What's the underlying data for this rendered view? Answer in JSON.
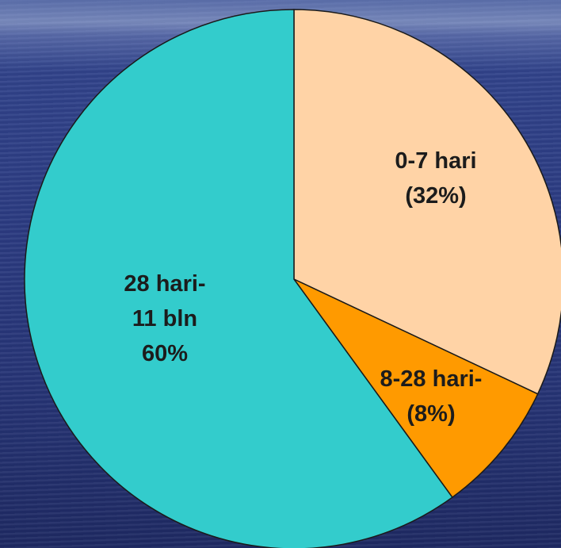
{
  "chart_data": {
    "type": "pie",
    "start_angle_deg": 0,
    "direction": "clockwise",
    "slices": [
      {
        "id": "0-7",
        "value": 32,
        "color": "#FFD3A6",
        "label_lines": [
          "0-7 hari",
          "(32%)"
        ]
      },
      {
        "id": "8-28",
        "value": 8,
        "color": "#FF9A00",
        "label_lines": [
          "8-28 hari-",
          "(8%)"
        ]
      },
      {
        "id": "28-11",
        "value": 60,
        "color": "#33CCCC",
        "label_lines": [
          "28 hari-",
          "11 bln",
          "60%"
        ]
      }
    ]
  },
  "colors": {
    "background": "#2c3c82",
    "slice_border": "#1a1a1a",
    "label_text": "#1c1c1c"
  }
}
